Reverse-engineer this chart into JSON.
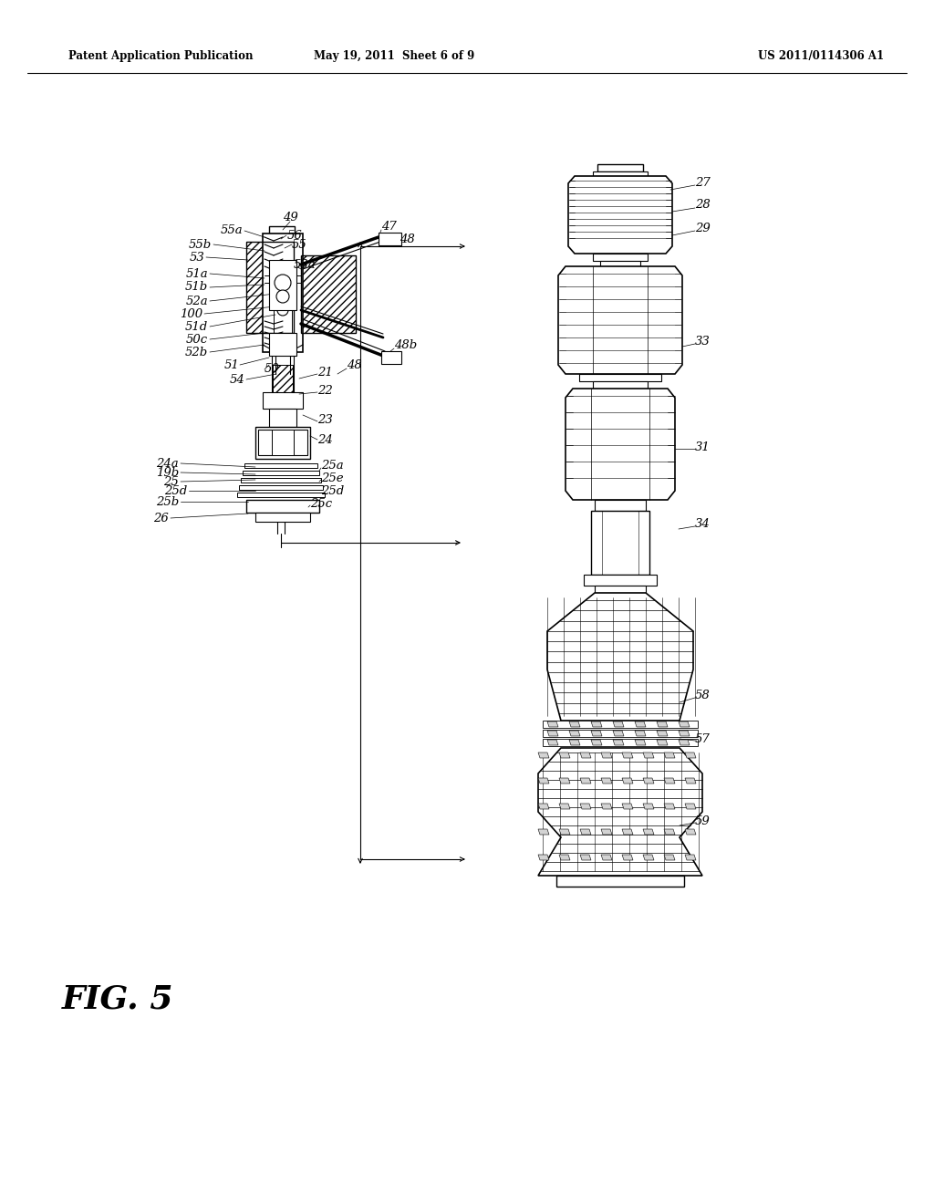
{
  "bg_color": "#ffffff",
  "header_left": "Patent Application Publication",
  "header_mid": "May 19, 2011  Sheet 6 of 9",
  "header_right": "US 2011/0114306 A1",
  "fig_label": "FIG. 5"
}
